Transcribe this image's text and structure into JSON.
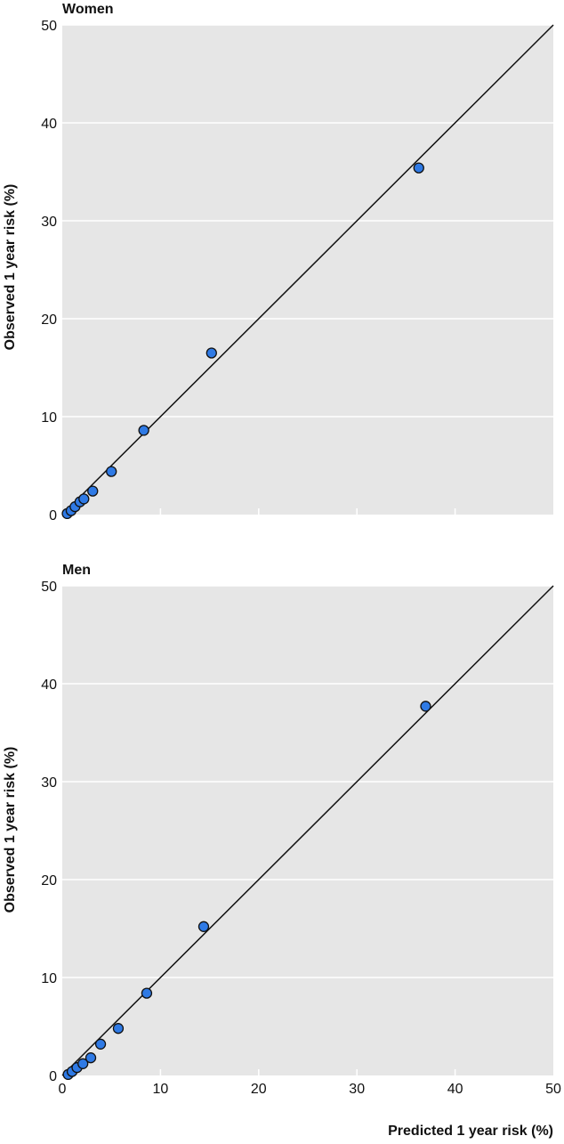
{
  "chart_data": [
    {
      "type": "scatter",
      "panel": "Women",
      "title": "Women",
      "xlabel": "",
      "ylabel": "Observed 1 year risk (%)",
      "xlim": [
        0,
        50
      ],
      "ylim": [
        0,
        50
      ],
      "x_ticks": [
        "0",
        "10",
        "20",
        "30",
        "40",
        "50"
      ],
      "y_ticks": [
        "0",
        "10",
        "20",
        "30",
        "40",
        "50"
      ],
      "show_x_tick_labels": false,
      "grid": true,
      "reference_line": "y = x",
      "point_color": "#2f7ae5",
      "points": [
        {
          "x": 0.5,
          "y": 0.1
        },
        {
          "x": 0.9,
          "y": 0.4
        },
        {
          "x": 1.3,
          "y": 0.8
        },
        {
          "x": 1.8,
          "y": 1.3
        },
        {
          "x": 2.2,
          "y": 1.6
        },
        {
          "x": 3.1,
          "y": 2.4
        },
        {
          "x": 5.0,
          "y": 4.4
        },
        {
          "x": 8.3,
          "y": 8.6
        },
        {
          "x": 15.2,
          "y": 16.5
        },
        {
          "x": 36.3,
          "y": 35.4
        }
      ]
    },
    {
      "type": "scatter",
      "panel": "Men",
      "title": "Men",
      "xlabel": "Predicted 1 year risk (%)",
      "ylabel": "Observed 1 year risk (%)",
      "xlim": [
        0,
        50
      ],
      "ylim": [
        0,
        50
      ],
      "x_ticks": [
        "0",
        "10",
        "20",
        "30",
        "40",
        "50"
      ],
      "y_ticks": [
        "0",
        "10",
        "20",
        "30",
        "40",
        "50"
      ],
      "show_x_tick_labels": true,
      "grid": true,
      "reference_line": "y = x",
      "point_color": "#2f7ae5",
      "points": [
        {
          "x": 0.6,
          "y": 0.1
        },
        {
          "x": 1.0,
          "y": 0.4
        },
        {
          "x": 1.5,
          "y": 0.8
        },
        {
          "x": 2.1,
          "y": 1.2
        },
        {
          "x": 2.9,
          "y": 1.8
        },
        {
          "x": 3.9,
          "y": 3.2
        },
        {
          "x": 5.7,
          "y": 4.8
        },
        {
          "x": 8.6,
          "y": 8.4
        },
        {
          "x": 14.4,
          "y": 15.2
        },
        {
          "x": 37.0,
          "y": 37.7
        }
      ]
    }
  ]
}
